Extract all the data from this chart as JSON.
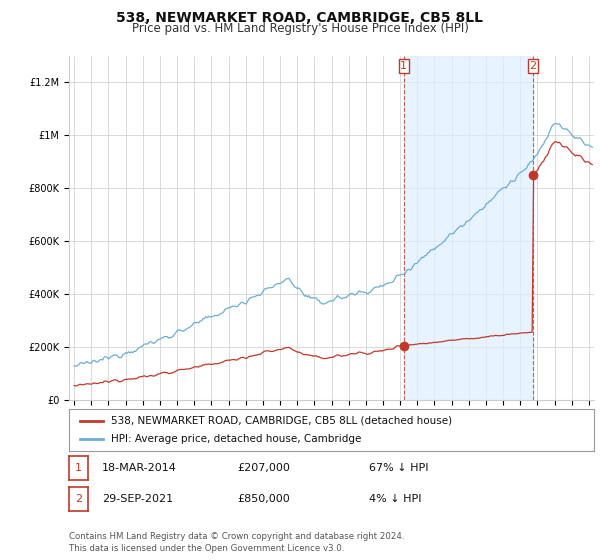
{
  "title": "538, NEWMARKET ROAD, CAMBRIDGE, CB5 8LL",
  "subtitle": "Price paid vs. HM Land Registry's House Price Index (HPI)",
  "title_fontsize": 10,
  "subtitle_fontsize": 8.5,
  "hpi_color": "#6baed6",
  "price_color": "#c0392b",
  "marker_color": "#c0392b",
  "shade_color": "#ddeeff",
  "background_color": "#ffffff",
  "grid_color": "#cccccc",
  "ylim": [
    0,
    1300000
  ],
  "xlim_start": 1994.7,
  "xlim_end": 2025.3,
  "yticks": [
    0,
    200000,
    400000,
    600000,
    800000,
    1000000,
    1200000
  ],
  "ytick_labels": [
    "£0",
    "£200K",
    "£400K",
    "£600K",
    "£800K",
    "£1M",
    "£1.2M"
  ],
  "xticks": [
    1995,
    1996,
    1997,
    1998,
    1999,
    2000,
    2001,
    2002,
    2003,
    2004,
    2005,
    2006,
    2007,
    2008,
    2009,
    2010,
    2011,
    2012,
    2013,
    2014,
    2015,
    2016,
    2017,
    2018,
    2019,
    2020,
    2021,
    2022,
    2023,
    2024,
    2025
  ],
  "t1": 2014.21,
  "t2": 2021.75,
  "t1_price": 207000,
  "t2_price": 850000,
  "legend_entries": [
    {
      "label": "538, NEWMARKET ROAD, CAMBRIDGE, CB5 8LL (detached house)",
      "color": "#c0392b"
    },
    {
      "label": "HPI: Average price, detached house, Cambridge",
      "color": "#6baed6"
    }
  ],
  "footnote": "Contains HM Land Registry data © Crown copyright and database right 2024.\nThis data is licensed under the Open Government Licence v3.0.",
  "table_rows": [
    {
      "num": "1",
      "date": "18-MAR-2014",
      "price": "£207,000",
      "hpi": "67% ↓ HPI"
    },
    {
      "num": "2",
      "date": "29-SEP-2021",
      "price": "£850,000",
      "hpi": "4% ↓ HPI"
    }
  ]
}
